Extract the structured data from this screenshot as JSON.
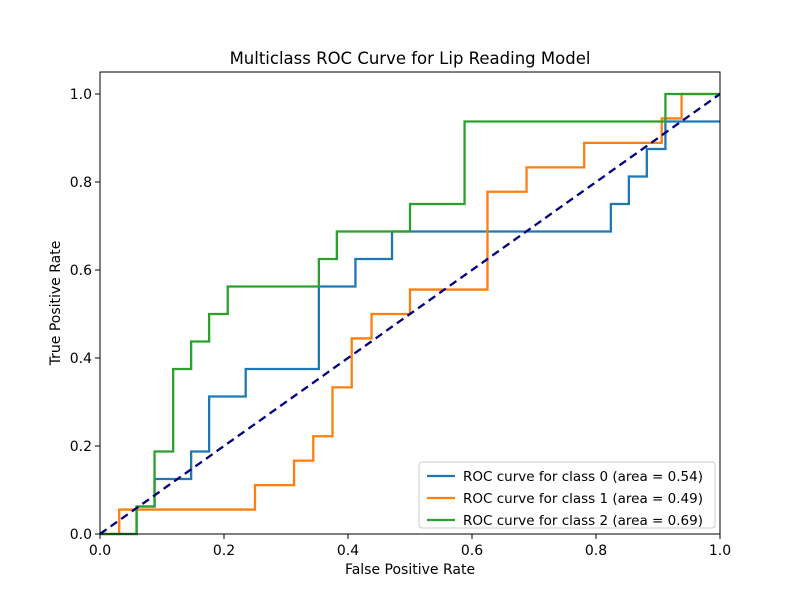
{
  "chart_data": {
    "type": "line",
    "title": "Multiclass ROC Curve for Lip Reading Model",
    "xlabel": "False Positive Rate",
    "ylabel": "True Positive Rate",
    "xlim": [
      0.0,
      1.0
    ],
    "ylim": [
      0.0,
      1.05
    ],
    "x_ticks": [
      "0.0",
      "0.2",
      "0.4",
      "0.6",
      "0.8",
      "1.0"
    ],
    "y_ticks": [
      "0.0",
      "0.2",
      "0.4",
      "0.6",
      "0.8",
      "1.0"
    ],
    "grid": false,
    "legend_position": "lower-right",
    "series": [
      {
        "name": "ROC curve for class 0 (area = 0.54)",
        "color": "#1f77b4",
        "x": [
          0.0,
          0.059,
          0.059,
          0.088,
          0.088,
          0.147,
          0.147,
          0.176,
          0.176,
          0.235,
          0.235,
          0.353,
          0.353,
          0.412,
          0.412,
          0.471,
          0.471,
          0.824,
          0.824,
          0.853,
          0.853,
          0.882,
          0.882,
          0.912,
          0.912,
          1.0
        ],
        "y": [
          0.0,
          0.0,
          0.0625,
          0.0625,
          0.125,
          0.125,
          0.1875,
          0.1875,
          0.3125,
          0.3125,
          0.375,
          0.375,
          0.5625,
          0.5625,
          0.625,
          0.625,
          0.6875,
          0.6875,
          0.75,
          0.75,
          0.8125,
          0.8125,
          0.875,
          0.875,
          0.9375,
          0.9375
        ]
      },
      {
        "name": "ROC curve for class 1 (area = 0.49)",
        "color": "#ff7f0e",
        "x": [
          0.0,
          0.031,
          0.031,
          0.25,
          0.25,
          0.313,
          0.313,
          0.344,
          0.344,
          0.375,
          0.375,
          0.406,
          0.406,
          0.438,
          0.438,
          0.5,
          0.5,
          0.625,
          0.625,
          0.688,
          0.688,
          0.781,
          0.781,
          0.906,
          0.906,
          0.938,
          0.938,
          1.0
        ],
        "y": [
          0.0,
          0.0,
          0.0556,
          0.0556,
          0.1111,
          0.1111,
          0.1667,
          0.1667,
          0.2222,
          0.2222,
          0.3333,
          0.3333,
          0.4444,
          0.4444,
          0.5,
          0.5,
          0.5556,
          0.5556,
          0.7778,
          0.7778,
          0.8333,
          0.8333,
          0.8889,
          0.8889,
          0.9444,
          0.9444,
          1.0,
          1.0
        ]
      },
      {
        "name": "ROC curve for class 2 (area = 0.69)",
        "color": "#2ca02c",
        "x": [
          0.0,
          0.059,
          0.059,
          0.088,
          0.088,
          0.118,
          0.118,
          0.147,
          0.147,
          0.176,
          0.176,
          0.206,
          0.206,
          0.353,
          0.353,
          0.382,
          0.382,
          0.5,
          0.5,
          0.588,
          0.588,
          0.912,
          0.912,
          1.0
        ],
        "y": [
          0.0,
          0.0,
          0.0625,
          0.0625,
          0.1875,
          0.1875,
          0.375,
          0.375,
          0.4375,
          0.4375,
          0.5,
          0.5,
          0.5625,
          0.5625,
          0.625,
          0.625,
          0.6875,
          0.6875,
          0.75,
          0.75,
          0.9375,
          0.9375,
          1.0,
          1.0
        ]
      }
    ],
    "reference_line": {
      "color": "#000080",
      "style": "dashed",
      "x": [
        0.0,
        1.0
      ],
      "y": [
        0.0,
        1.0
      ]
    }
  }
}
